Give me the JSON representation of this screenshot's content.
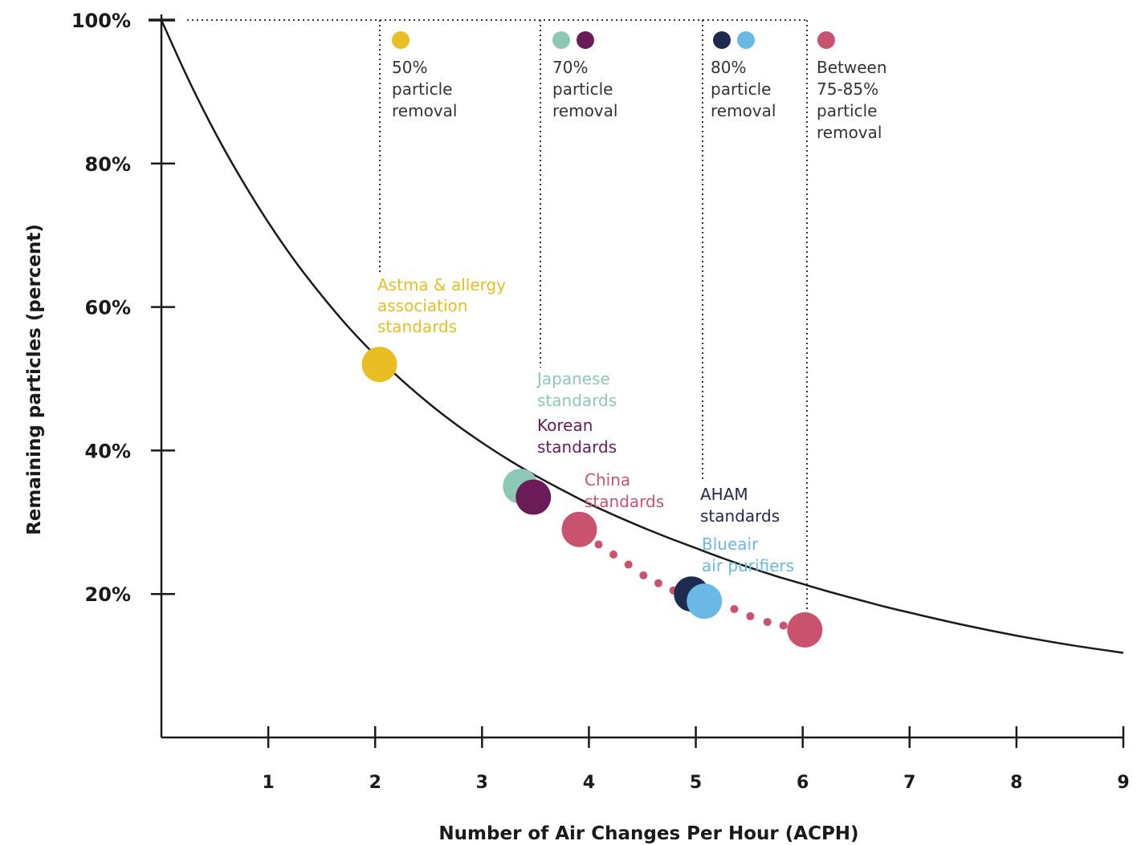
{
  "chart_data": {
    "type": "line",
    "xlabel": "Number of Air Changes Per Hour (ACPH)",
    "ylabel": "Remaining particles (percent)",
    "xlim": [
      0,
      9
    ],
    "ylim": [
      0,
      100
    ],
    "x_ticks": [
      "1",
      "2",
      "3",
      "4",
      "5",
      "6",
      "7",
      "8",
      "9"
    ],
    "y_ticks": [
      "20%",
      "40%",
      "60%",
      "80%",
      "100%"
    ],
    "grid": false,
    "curve": {
      "x": [
        0,
        0.25,
        0.5,
        0.75,
        1,
        1.25,
        1.5,
        1.75,
        2,
        2.25,
        2.5,
        2.75,
        3,
        3.25,
        3.5,
        3.75,
        4,
        4.25,
        4.5,
        4.75,
        5,
        5.25,
        5.5,
        5.75,
        6,
        6.25,
        6.5,
        6.75,
        7,
        7.5,
        8,
        8.5,
        9
      ],
      "y": [
        100,
        91.8,
        84.4,
        77.8,
        71.8,
        66.4,
        61.6,
        57.2,
        53.3,
        49.8,
        46.6,
        43.7,
        41.1,
        38.7,
        36.5,
        34.5,
        32.6,
        30.9,
        29.3,
        27.8,
        26.4,
        25.0,
        23.7,
        22.5,
        21.4,
        20.3,
        19.3,
        18.3,
        17.4,
        15.7,
        14.2,
        12.9,
        11.8
      ]
    },
    "points": [
      {
        "name": "Astma & allergy association standards",
        "x": 2.04,
        "y": 52,
        "color": "#E8BE24"
      },
      {
        "name": "Japanese standards",
        "x": 3.36,
        "y": 35,
        "color": "#8DC8B7"
      },
      {
        "name": "Korean standards",
        "x": 3.48,
        "y": 33.5,
        "color": "#6B1B57"
      },
      {
        "name": "China standards",
        "x": 3.91,
        "y": 29,
        "color": "#C9536F"
      },
      {
        "name": "AHAM standards",
        "x": 4.96,
        "y": 20,
        "color": "#1E2A4F"
      },
      {
        "name": "Blueair air purifiers",
        "x": 5.08,
        "y": 19,
        "color": "#69B8E5"
      },
      {
        "name": "Between 75-85% particle removal",
        "x": 6.02,
        "y": 15,
        "color": "#C9536F"
      }
    ],
    "minor_points": {
      "color": "#C9536F",
      "x": [
        4.09,
        4.23,
        4.37,
        4.51,
        4.65,
        4.79,
        5.36,
        5.51,
        5.67,
        5.82
      ],
      "y": [
        26.9,
        25.5,
        24.1,
        22.6,
        21.5,
        20.5,
        17.9,
        16.9,
        16.1,
        15.6
      ]
    },
    "annotations": {
      "astma": [
        "Astma & allergy",
        "association",
        "standards"
      ],
      "japanese": [
        "Japanese",
        "standards"
      ],
      "korean": [
        "Korean",
        "standards"
      ],
      "china": [
        "China",
        "standards"
      ],
      "aham": [
        "AHAM",
        "standards"
      ],
      "blueair": [
        "Blueair",
        "air purifiers"
      ]
    },
    "legend": {
      "g50": {
        "lines": [
          "50%",
          "particle",
          "removal"
        ],
        "colors": [
          "#E8BE24"
        ]
      },
      "g70": {
        "lines": [
          "70%",
          "particle",
          "removal"
        ],
        "colors": [
          "#8DC8B7",
          "#6B1B57"
        ]
      },
      "g80": {
        "lines": [
          "80%",
          "particle",
          "removal"
        ],
        "colors": [
          "#1E2A4F",
          "#69B8E5"
        ]
      },
      "g75_85": {
        "lines": [
          "Between",
          "75-85%",
          "particle",
          "removal"
        ],
        "colors": [
          "#C9536F"
        ]
      }
    },
    "colors": {
      "text": "#1a1a1a",
      "legend_text": "#333333",
      "astma": "#E8BE24",
      "japanese": "#8DC8B7",
      "korean": "#6B1B57",
      "china": "#C9536F",
      "aham": "#1E2A4F",
      "blueair": "#69B8E5"
    }
  }
}
